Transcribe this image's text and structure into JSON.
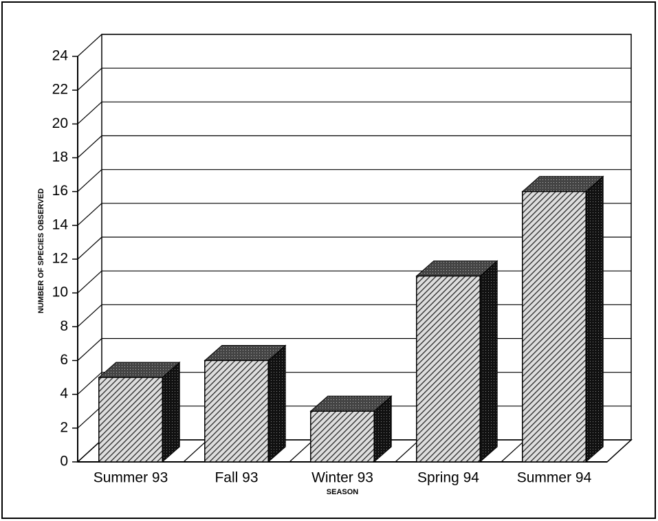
{
  "chart_data": {
    "type": "bar3d",
    "categories": [
      "Summer 93",
      "Fall 93",
      "Winter 93",
      "Spring 94",
      "Summer 94"
    ],
    "values": [
      5,
      6,
      3,
      11,
      16
    ],
    "ylim": [
      0,
      24
    ],
    "yticks": [
      0,
      2,
      4,
      6,
      8,
      10,
      12,
      14,
      16,
      18,
      20,
      22,
      24
    ],
    "ylabel": "NUMBER OF SPECIES OBSERVED",
    "xlabel": "SEASON",
    "grid": true
  }
}
